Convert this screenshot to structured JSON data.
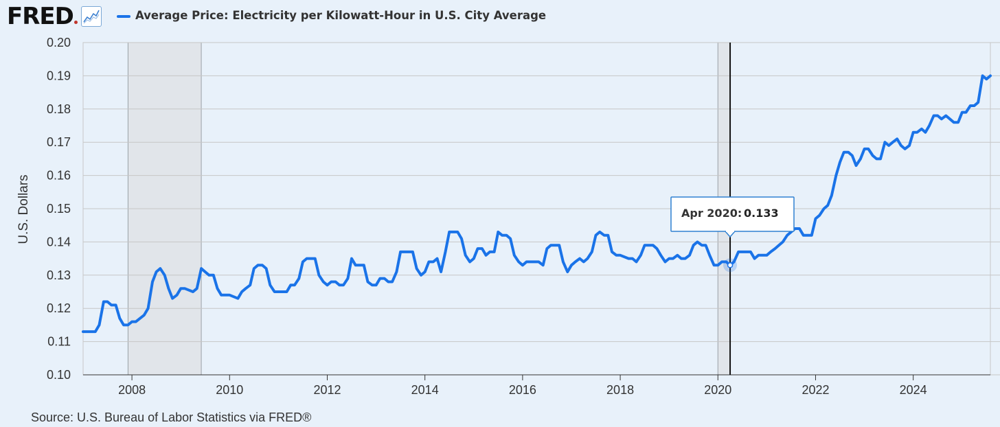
{
  "header": {
    "logo_text": "FRED",
    "logo_icon": "line-graph-icon",
    "legend_label": "Average Price: Electricity per Kilowatt-Hour in U.S. City Average",
    "series_color": "#1a73e8"
  },
  "source_text": "Source: U.S. Bureau of Labor Statistics via FRED®",
  "tooltip": {
    "date": "Apr 2020:",
    "value": "0.133"
  },
  "chart_data": {
    "type": "line",
    "title": "Average Price: Electricity per Kilowatt-Hour in U.S. City Average",
    "ylabel": "U.S. Dollars",
    "xlabel": "",
    "xlim": [
      2007.0,
      2025.58
    ],
    "ylim": [
      0.1,
      0.2
    ],
    "y_ticks": [
      "0.10",
      "0.11",
      "0.12",
      "0.13",
      "0.14",
      "0.15",
      "0.16",
      "0.17",
      "0.18",
      "0.19",
      "0.20"
    ],
    "x_ticks": [
      "2008",
      "2010",
      "2012",
      "2014",
      "2016",
      "2018",
      "2020",
      "2022",
      "2024"
    ],
    "grid": true,
    "recessions": [
      [
        2007.92,
        2009.42
      ],
      [
        2020.0,
        2020.25
      ]
    ],
    "highlight": {
      "x": 2020.25,
      "y": 0.133
    },
    "series": [
      {
        "name": "Average Price: Electricity per Kilowatt-Hour in U.S. City Average",
        "color": "#1a73e8",
        "x": [
          2007.0,
          2007.25,
          2007.33,
          2007.42,
          2007.5,
          2007.58,
          2007.67,
          2007.75,
          2007.83,
          2007.92,
          2008.0,
          2008.08,
          2008.25,
          2008.33,
          2008.42,
          2008.5,
          2008.58,
          2008.67,
          2008.75,
          2008.83,
          2008.92,
          2009.0,
          2009.08,
          2009.25,
          2009.33,
          2009.42,
          2009.5,
          2009.58,
          2009.67,
          2009.75,
          2009.83,
          2009.92,
          2010.0,
          2010.17,
          2010.25,
          2010.33,
          2010.42,
          2010.5,
          2010.58,
          2010.67,
          2010.75,
          2010.83,
          2010.92,
          2011.17,
          2011.25,
          2011.33,
          2011.42,
          2011.5,
          2011.58,
          2011.67,
          2011.75,
          2011.83,
          2011.92,
          2012.0,
          2012.08,
          2012.17,
          2012.25,
          2012.33,
          2012.42,
          2012.5,
          2012.58,
          2012.67,
          2012.75,
          2012.83,
          2012.92,
          2013.0,
          2013.08,
          2013.17,
          2013.25,
          2013.33,
          2013.42,
          2013.5,
          2013.58,
          2013.67,
          2013.75,
          2013.83,
          2013.92,
          2014.0,
          2014.08,
          2014.17,
          2014.25,
          2014.33,
          2014.42,
          2014.5,
          2014.58,
          2014.67,
          2014.75,
          2014.83,
          2014.92,
          2015.0,
          2015.08,
          2015.17,
          2015.25,
          2015.33,
          2015.42,
          2015.5,
          2015.58,
          2015.67,
          2015.75,
          2015.83,
          2015.92,
          2016.0,
          2016.08,
          2016.25,
          2016.33,
          2016.42,
          2016.5,
          2016.58,
          2016.67,
          2016.75,
          2016.83,
          2016.92,
          2017.0,
          2017.08,
          2017.17,
          2017.25,
          2017.33,
          2017.42,
          2017.5,
          2017.58,
          2017.67,
          2017.75,
          2017.83,
          2017.92,
          2018.0,
          2018.17,
          2018.25,
          2018.33,
          2018.42,
          2018.5,
          2018.58,
          2018.67,
          2018.75,
          2018.83,
          2018.92,
          2019.0,
          2019.08,
          2019.17,
          2019.25,
          2019.33,
          2019.42,
          2019.5,
          2019.58,
          2019.67,
          2019.75,
          2019.83,
          2019.92,
          2020.0,
          2020.08,
          2020.17,
          2020.25,
          2020.33,
          2020.42,
          2020.5,
          2020.67,
          2020.75,
          2020.83,
          2020.92,
          2021.0,
          2021.08,
          2021.17,
          2021.25,
          2021.33,
          2021.42,
          2021.5,
          2021.58,
          2021.67,
          2021.75,
          2021.83,
          2021.92,
          2022.0,
          2022.08,
          2022.17,
          2022.25,
          2022.33,
          2022.42,
          2022.5,
          2022.58,
          2022.67,
          2022.75,
          2022.83,
          2022.92,
          2023.0,
          2023.08,
          2023.17,
          2023.25,
          2023.33,
          2023.42,
          2023.5,
          2023.58,
          2023.67,
          2023.75,
          2023.83,
          2023.92,
          2024.0,
          2024.08,
          2024.17,
          2024.25,
          2024.33,
          2024.42,
          2024.5,
          2024.58,
          2024.67,
          2024.75,
          2024.83,
          2024.92,
          2025.0,
          2025.08,
          2025.17,
          2025.25,
          2025.33,
          2025.42,
          2025.5,
          2025.58
        ],
        "values": [
          0.113,
          0.113,
          0.115,
          0.122,
          0.122,
          0.121,
          0.121,
          0.117,
          0.115,
          0.115,
          0.116,
          0.116,
          0.118,
          0.12,
          0.128,
          0.131,
          0.132,
          0.13,
          0.126,
          0.123,
          0.124,
          0.126,
          0.126,
          0.125,
          0.126,
          0.132,
          0.131,
          0.13,
          0.13,
          0.126,
          0.124,
          0.124,
          0.124,
          0.123,
          0.125,
          0.126,
          0.127,
          0.132,
          0.133,
          0.133,
          0.132,
          0.127,
          0.125,
          0.125,
          0.127,
          0.127,
          0.129,
          0.134,
          0.135,
          0.135,
          0.135,
          0.13,
          0.128,
          0.127,
          0.128,
          0.128,
          0.127,
          0.127,
          0.129,
          0.135,
          0.133,
          0.133,
          0.133,
          0.128,
          0.127,
          0.127,
          0.129,
          0.129,
          0.128,
          0.128,
          0.131,
          0.137,
          0.137,
          0.137,
          0.137,
          0.132,
          0.13,
          0.131,
          0.134,
          0.134,
          0.135,
          0.131,
          0.137,
          0.143,
          0.143,
          0.143,
          0.141,
          0.136,
          0.134,
          0.135,
          0.138,
          0.138,
          0.136,
          0.137,
          0.137,
          0.143,
          0.142,
          0.142,
          0.141,
          0.136,
          0.134,
          0.133,
          0.134,
          0.134,
          0.134,
          0.133,
          0.138,
          0.139,
          0.139,
          0.139,
          0.134,
          0.131,
          0.133,
          0.134,
          0.135,
          0.134,
          0.135,
          0.137,
          0.142,
          0.143,
          0.142,
          0.142,
          0.137,
          0.136,
          0.136,
          0.135,
          0.135,
          0.134,
          0.136,
          0.139,
          0.139,
          0.139,
          0.138,
          0.136,
          0.134,
          0.135,
          0.135,
          0.136,
          0.135,
          0.135,
          0.136,
          0.139,
          0.14,
          0.139,
          0.139,
          0.136,
          0.133,
          0.133,
          0.134,
          0.134,
          0.133,
          0.134,
          0.137,
          0.137,
          0.137,
          0.135,
          0.136,
          0.136,
          0.136,
          0.137,
          0.138,
          0.139,
          0.14,
          0.142,
          0.143,
          0.144,
          0.144,
          0.142,
          0.142,
          0.142,
          0.147,
          0.148,
          0.15,
          0.151,
          0.154,
          0.16,
          0.164,
          0.167,
          0.167,
          0.166,
          0.163,
          0.165,
          0.168,
          0.168,
          0.166,
          0.165,
          0.165,
          0.17,
          0.169,
          0.17,
          0.171,
          0.169,
          0.168,
          0.169,
          0.173,
          0.173,
          0.174,
          0.173,
          0.175,
          0.178,
          0.178,
          0.177,
          0.178,
          0.177,
          0.176,
          0.176,
          0.179,
          0.179,
          0.181,
          0.181,
          0.182,
          0.19,
          0.189,
          0.19
        ]
      }
    ]
  }
}
